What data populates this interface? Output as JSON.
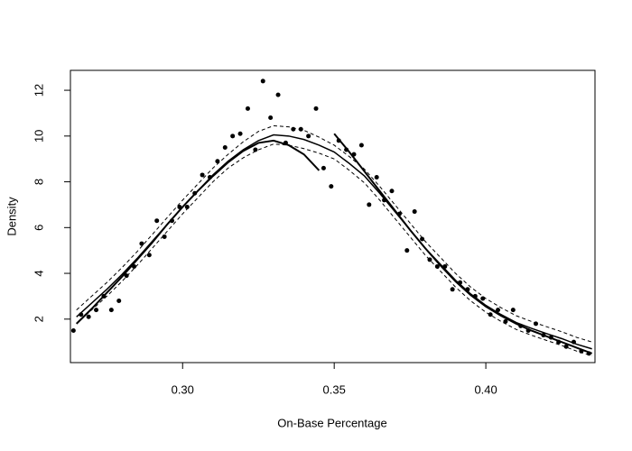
{
  "chart_data": {
    "type": "scatter",
    "xlabel": "On-Base Percentage",
    "ylabel": "Density",
    "xlim": [
      0.263,
      0.436
    ],
    "ylim": [
      0.1,
      12.87
    ],
    "xticks": [
      {
        "value": 0.3,
        "label": "0.30"
      },
      {
        "value": 0.35,
        "label": "0.35"
      },
      {
        "value": 0.4,
        "label": "0.40"
      }
    ],
    "yticks": [
      2,
      4,
      6,
      8,
      10,
      12
    ],
    "series": [
      {
        "kind": "points",
        "color": "#000000",
        "x": [
          0.264,
          0.2665,
          0.269,
          0.2715,
          0.274,
          0.2765,
          0.279,
          0.2815,
          0.284,
          0.2865,
          0.289,
          0.2915,
          0.294,
          0.2965,
          0.299,
          0.3015,
          0.304,
          0.3065,
          0.309,
          0.3115,
          0.314,
          0.3165,
          0.319,
          0.3215,
          0.324,
          0.3265,
          0.329,
          0.3315,
          0.334,
          0.3365,
          0.339,
          0.3415,
          0.344,
          0.3465,
          0.349,
          0.3515,
          0.354,
          0.3565,
          0.359,
          0.3615,
          0.364,
          0.3665,
          0.369,
          0.3715,
          0.374,
          0.3765,
          0.379,
          0.3815,
          0.384,
          0.3865,
          0.389,
          0.3915,
          0.394,
          0.3965,
          0.399,
          0.4015,
          0.404,
          0.4065,
          0.409,
          0.4115,
          0.414,
          0.4165,
          0.419,
          0.4215,
          0.424,
          0.4265,
          0.429,
          0.4315,
          0.434
        ],
        "values": [
          1.5,
          2.2,
          2.1,
          2.4,
          3.0,
          2.4,
          2.8,
          3.9,
          4.3,
          5.3,
          4.8,
          6.3,
          5.6,
          6.3,
          6.9,
          6.9,
          7.5,
          8.3,
          8.2,
          8.9,
          9.5,
          10.0,
          10.1,
          11.2,
          9.4,
          12.4,
          10.8,
          11.8,
          9.7,
          10.3,
          10.3,
          10.0,
          11.2,
          8.6,
          7.8,
          9.8,
          9.4,
          9.2,
          9.6,
          7.0,
          8.2,
          7.2,
          7.6,
          6.6,
          5.0,
          6.7,
          5.5,
          4.6,
          4.3,
          4.3,
          3.3,
          3.6,
          3.3,
          3.0,
          2.9,
          2.2,
          2.4,
          1.9,
          2.4,
          1.7,
          1.5,
          1.8,
          1.3,
          1.2,
          1.0,
          0.8,
          1.0,
          0.6,
          0.5
        ]
      },
      {
        "kind": "line",
        "color": "#000000",
        "dash": false,
        "width": 1.5,
        "x": [
          0.265,
          0.27,
          0.275,
          0.28,
          0.285,
          0.29,
          0.295,
          0.3,
          0.305,
          0.31,
          0.315,
          0.32,
          0.325,
          0.33,
          0.335,
          0.34,
          0.345,
          0.35,
          0.355,
          0.36,
          0.365,
          0.37,
          0.375,
          0.38,
          0.385,
          0.39,
          0.395,
          0.4,
          0.405,
          0.41,
          0.415,
          0.42,
          0.425,
          0.43,
          0.435
        ],
        "values": [
          2.1,
          2.7,
          3.3,
          3.95,
          4.65,
          5.4,
          6.15,
          6.9,
          7.6,
          8.3,
          8.9,
          9.4,
          9.8,
          10.05,
          10.0,
          9.85,
          9.6,
          9.3,
          8.8,
          8.25,
          7.5,
          6.7,
          5.9,
          5.1,
          4.4,
          3.7,
          3.1,
          2.6,
          2.2,
          1.85,
          1.6,
          1.37,
          1.15,
          0.9,
          0.7
        ]
      },
      {
        "kind": "line",
        "color": "#000000",
        "dash": true,
        "width": 1,
        "x": [
          0.265,
          0.27,
          0.275,
          0.28,
          0.285,
          0.29,
          0.295,
          0.3,
          0.305,
          0.31,
          0.315,
          0.32,
          0.325,
          0.33,
          0.335,
          0.34,
          0.345,
          0.35,
          0.355,
          0.36,
          0.365,
          0.37,
          0.375,
          0.38,
          0.385,
          0.39,
          0.395,
          0.4,
          0.405,
          0.41,
          0.415,
          0.42,
          0.425,
          0.43,
          0.435
        ],
        "values": [
          2.4,
          3.0,
          3.6,
          4.25,
          4.95,
          5.7,
          6.45,
          7.2,
          7.9,
          8.6,
          9.2,
          9.75,
          10.2,
          10.45,
          10.4,
          10.25,
          9.95,
          9.6,
          9.1,
          8.55,
          7.8,
          7.0,
          6.2,
          5.4,
          4.7,
          4.0,
          3.4,
          2.9,
          2.5,
          2.15,
          1.9,
          1.67,
          1.45,
          1.2,
          1.0
        ]
      },
      {
        "kind": "line",
        "color": "#000000",
        "dash": true,
        "width": 1,
        "x": [
          0.265,
          0.27,
          0.275,
          0.28,
          0.285,
          0.29,
          0.295,
          0.3,
          0.305,
          0.31,
          0.315,
          0.32,
          0.325,
          0.33,
          0.335,
          0.34,
          0.345,
          0.35,
          0.355,
          0.36,
          0.365,
          0.37,
          0.375,
          0.38,
          0.385,
          0.39,
          0.395,
          0.4,
          0.405,
          0.41,
          0.415,
          0.42,
          0.425,
          0.43,
          0.435
        ],
        "values": [
          1.8,
          2.4,
          3.0,
          3.65,
          4.35,
          5.1,
          5.85,
          6.6,
          7.3,
          8.0,
          8.6,
          9.05,
          9.4,
          9.65,
          9.6,
          9.45,
          9.25,
          9.0,
          8.5,
          7.95,
          7.2,
          6.4,
          5.6,
          4.8,
          4.1,
          3.4,
          2.8,
          2.3,
          1.9,
          1.55,
          1.3,
          1.07,
          0.85,
          0.6,
          0.4
        ]
      },
      {
        "kind": "line",
        "color": "#000000",
        "dash": false,
        "width": 2,
        "x": [
          0.265,
          0.27,
          0.275,
          0.28,
          0.285,
          0.29,
          0.295,
          0.3,
          0.305,
          0.31,
          0.315,
          0.32,
          0.325,
          0.33,
          0.335,
          0.34,
          0.345
        ],
        "values": [
          1.8,
          2.45,
          3.15,
          3.85,
          4.6,
          5.35,
          6.15,
          6.9,
          7.6,
          8.25,
          8.85,
          9.35,
          9.7,
          9.8,
          9.6,
          9.2,
          8.5
        ]
      },
      {
        "kind": "line",
        "color": "#000000",
        "dash": false,
        "width": 2,
        "x": [
          0.35,
          0.355,
          0.36,
          0.365,
          0.37,
          0.375,
          0.38,
          0.385,
          0.39,
          0.395,
          0.4,
          0.405,
          0.41,
          0.415,
          0.42,
          0.425,
          0.43,
          0.435
        ],
        "values": [
          10.1,
          9.3,
          8.45,
          7.6,
          6.75,
          5.9,
          5.1,
          4.35,
          3.65,
          3.05,
          2.55,
          2.15,
          1.8,
          1.5,
          1.25,
          1.0,
          0.75,
          0.5
        ]
      }
    ]
  }
}
